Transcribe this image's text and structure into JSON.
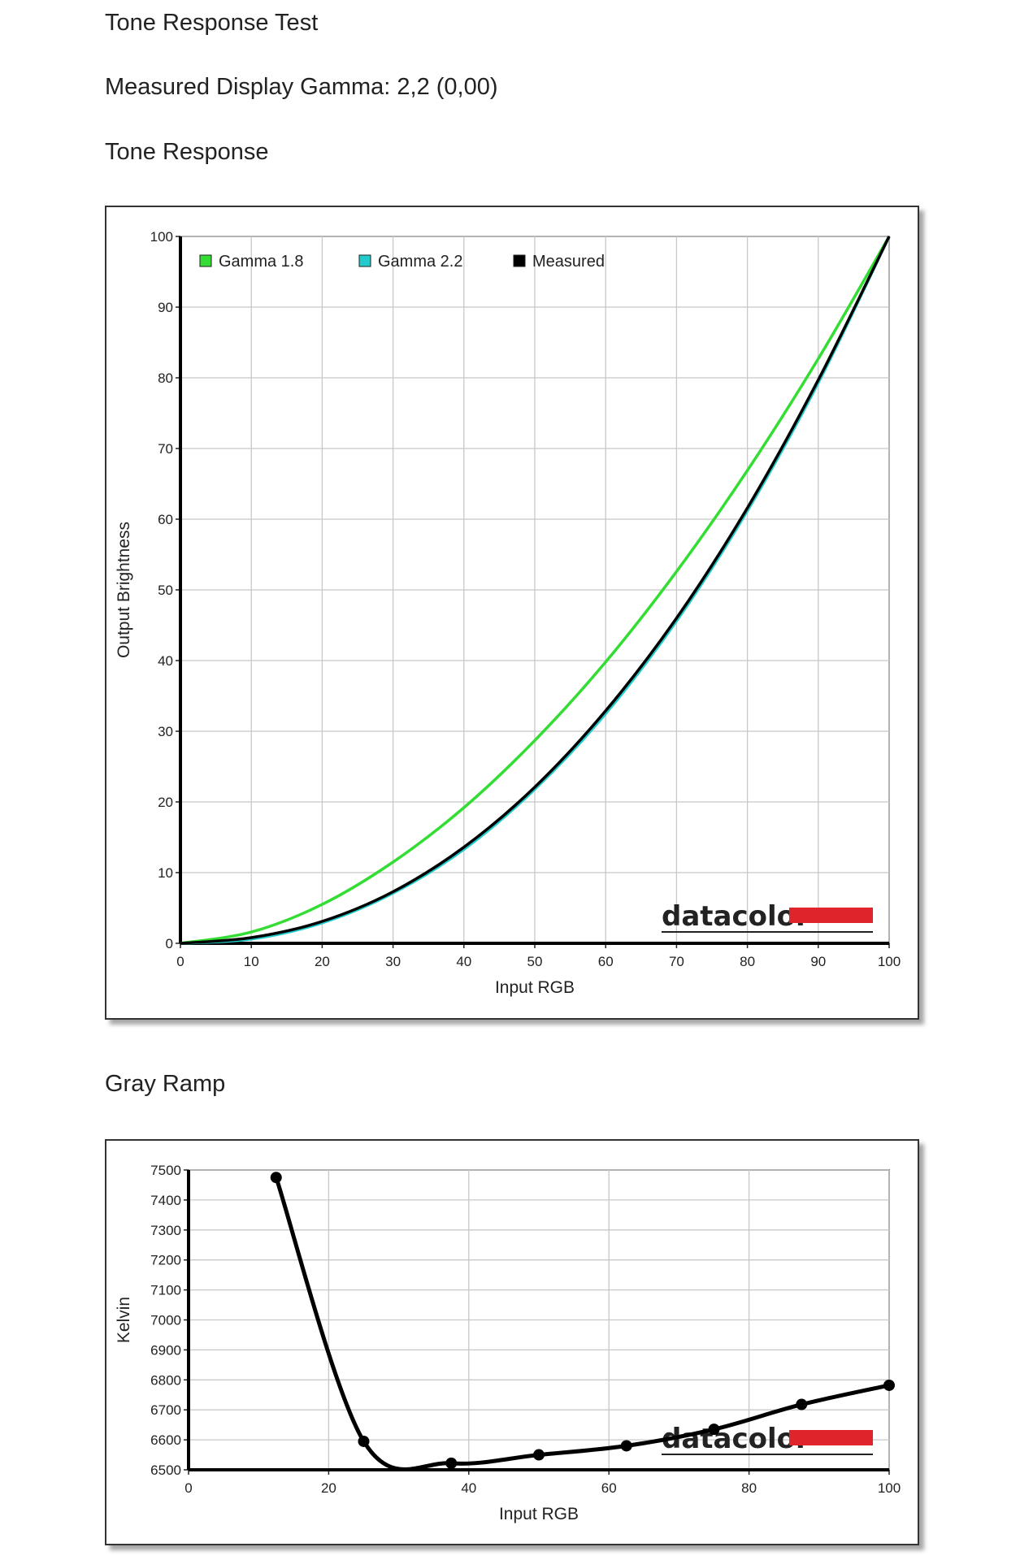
{
  "page": {
    "title": "Tone Response Test",
    "gamma_text": "Measured Display Gamma: 2,2 (0,00)",
    "tone_heading": "Tone Response",
    "gray_heading": "Gray Ramp"
  },
  "logo": {
    "text": "datacolor",
    "bar_color": "#e0242c"
  },
  "chart_data": [
    {
      "type": "line",
      "title": "Tone Response",
      "xlabel": "Input RGB",
      "ylabel": "Output Brightness",
      "xlim": [
        0,
        100
      ],
      "ylim": [
        0,
        100
      ],
      "xticks": [
        "0",
        "10",
        "20",
        "30",
        "40",
        "50",
        "60",
        "70",
        "80",
        "90",
        "100"
      ],
      "yticks": [
        "0",
        "10",
        "20",
        "30",
        "40",
        "50",
        "60",
        "70",
        "80",
        "90",
        "100"
      ],
      "grid": true,
      "legend_position": "top-left",
      "x": [
        0,
        10,
        20,
        30,
        40,
        50,
        60,
        70,
        80,
        90,
        100
      ],
      "series": [
        {
          "name": "Gamma 1.8",
          "color": "#33dd33",
          "values": [
            0,
            1.6,
            5.5,
            11.5,
            19.2,
            28.7,
            39.8,
            52.6,
            66.9,
            82.7,
            100
          ]
        },
        {
          "name": "Gamma 2.2",
          "color": "#22cccc",
          "values": [
            0,
            0.6,
            2.9,
            7.1,
            13.3,
            21.8,
            32.5,
            45.6,
            61.2,
            79.3,
            100
          ]
        },
        {
          "name": "Measured",
          "color": "#000000",
          "values": [
            0,
            0.8,
            3.1,
            7.3,
            13.6,
            22.1,
            32.9,
            46.0,
            61.6,
            79.7,
            100
          ]
        }
      ]
    },
    {
      "type": "line",
      "title": "Gray Ramp",
      "xlabel": "Input RGB",
      "ylabel": "Kelvin",
      "xlim": [
        0,
        100
      ],
      "ylim": [
        6500,
        7500
      ],
      "xticks": [
        "0",
        "20",
        "40",
        "60",
        "80",
        "100"
      ],
      "yticks": [
        "6500",
        "6600",
        "6700",
        "6800",
        "6900",
        "7000",
        "7100",
        "7200",
        "7300",
        "7400",
        "7500"
      ],
      "grid": true,
      "series": [
        {
          "name": "",
          "color": "#000000",
          "points": [
            [
              12.5,
              7475
            ],
            [
              25,
              6595
            ],
            [
              37.5,
              6522
            ],
            [
              50,
              6550
            ],
            [
              62.5,
              6580
            ],
            [
              75,
              6635
            ],
            [
              87.5,
              6718
            ],
            [
              100,
              6782
            ]
          ]
        }
      ]
    }
  ]
}
